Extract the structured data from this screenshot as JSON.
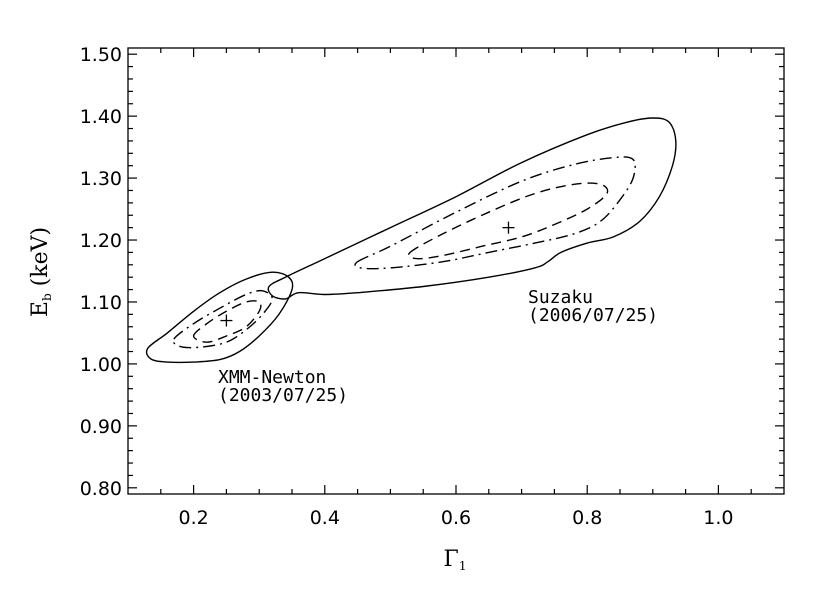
{
  "chart_data": {
    "type": "contour",
    "xlabel": "Γ₁",
    "ylabel": "E_b (keV)",
    "ylabel_main": "E",
    "ylabel_sub": "b",
    "ylabel_unit": " (keV)",
    "xlim": [
      0.1,
      1.1
    ],
    "ylim": [
      0.79,
      1.51
    ],
    "x_ticks": [
      0.2,
      0.4,
      0.6,
      0.8,
      1.0
    ],
    "x_tick_labels": [
      "0.2",
      "0.4",
      "0.6",
      "0.8",
      "1.0"
    ],
    "y_ticks": [
      0.8,
      0.9,
      1.0,
      1.1,
      1.2,
      1.3,
      1.4,
      1.5
    ],
    "y_tick_labels": [
      "0.80",
      "0.90",
      "1.00",
      "1.10",
      "1.20",
      "1.30",
      "1.40",
      "1.50"
    ],
    "grid": false,
    "datasets": [
      {
        "label_line1": "XMM-Newton",
        "label_line2": "(2003/07/25)",
        "best_fit": [
          0.25,
          1.07
        ],
        "contours": [
          {
            "style": "solid",
            "points": [
              [
                0.13,
                1.025
              ],
              [
                0.16,
                1.05
              ],
              [
                0.2,
                1.085
              ],
              [
                0.24,
                1.115
              ],
              [
                0.28,
                1.137
              ],
              [
                0.32,
                1.148
              ],
              [
                0.345,
                1.14
              ],
              [
                0.35,
                1.12
              ],
              [
                0.33,
                1.08
              ],
              [
                0.3,
                1.045
              ],
              [
                0.27,
                1.02
              ],
              [
                0.24,
                1.007
              ],
              [
                0.2,
                1.003
              ],
              [
                0.16,
                1.003
              ],
              [
                0.135,
                1.008
              ]
            ]
          },
          {
            "style": "dashdot",
            "points": [
              [
                0.17,
                1.04
              ],
              [
                0.2,
                1.065
              ],
              [
                0.24,
                1.09
              ],
              [
                0.28,
                1.112
              ],
              [
                0.305,
                1.118
              ],
              [
                0.32,
                1.105
              ],
              [
                0.305,
                1.08
              ],
              [
                0.28,
                1.055
              ],
              [
                0.25,
                1.035
              ],
              [
                0.21,
                1.027
              ],
              [
                0.18,
                1.028
              ]
            ]
          },
          {
            "style": "dashed",
            "points": [
              [
                0.2,
                1.045
              ],
              [
                0.22,
                1.065
              ],
              [
                0.25,
                1.085
              ],
              [
                0.28,
                1.1
              ],
              [
                0.3,
                1.1
              ],
              [
                0.3,
                1.085
              ],
              [
                0.28,
                1.06
              ],
              [
                0.25,
                1.045
              ],
              [
                0.22,
                1.035
              ]
            ]
          }
        ]
      },
      {
        "label_line1": "Suzaku",
        "label_line2": "(2006/07/25)",
        "best_fit": [
          0.68,
          1.22
        ],
        "contours": [
          {
            "style": "solid",
            "points": [
              [
                0.315,
                1.125
              ],
              [
                0.34,
                1.14
              ],
              [
                0.4,
                1.17
              ],
              [
                0.5,
                1.22
              ],
              [
                0.6,
                1.27
              ],
              [
                0.7,
                1.325
              ],
              [
                0.8,
                1.37
              ],
              [
                0.86,
                1.39
              ],
              [
                0.9,
                1.397
              ],
              [
                0.925,
                1.39
              ],
              [
                0.935,
                1.36
              ],
              [
                0.93,
                1.32
              ],
              [
                0.91,
                1.27
              ],
              [
                0.88,
                1.23
              ],
              [
                0.84,
                1.205
              ],
              [
                0.8,
                1.195
              ],
              [
                0.76,
                1.18
              ],
              [
                0.74,
                1.165
              ],
              [
                0.72,
                1.155
              ],
              [
                0.65,
                1.14
              ],
              [
                0.55,
                1.125
              ],
              [
                0.45,
                1.115
              ],
              [
                0.4,
                1.112
              ],
              [
                0.36,
                1.115
              ],
              [
                0.34,
                1.105
              ],
              [
                0.32,
                1.11
              ]
            ]
          },
          {
            "style": "dashdot",
            "points": [
              [
                0.45,
                1.165
              ],
              [
                0.5,
                1.19
              ],
              [
                0.6,
                1.245
              ],
              [
                0.7,
                1.295
              ],
              [
                0.78,
                1.322
              ],
              [
                0.84,
                1.333
              ],
              [
                0.87,
                1.33
              ],
              [
                0.87,
                1.3
              ],
              [
                0.85,
                1.265
              ],
              [
                0.82,
                1.23
              ],
              [
                0.78,
                1.21
              ],
              [
                0.72,
                1.195
              ],
              [
                0.65,
                1.18
              ],
              [
                0.58,
                1.165
              ],
              [
                0.5,
                1.155
              ],
              [
                0.455,
                1.155
              ]
            ]
          },
          {
            "style": "dashed",
            "points": [
              [
                0.53,
                1.18
              ],
              [
                0.58,
                1.21
              ],
              [
                0.65,
                1.245
              ],
              [
                0.72,
                1.275
              ],
              [
                0.78,
                1.29
              ],
              [
                0.82,
                1.29
              ],
              [
                0.83,
                1.275
              ],
              [
                0.8,
                1.25
              ],
              [
                0.75,
                1.225
              ],
              [
                0.7,
                1.205
              ],
              [
                0.64,
                1.19
              ],
              [
                0.58,
                1.175
              ],
              [
                0.54,
                1.17
              ]
            ]
          }
        ]
      }
    ]
  }
}
